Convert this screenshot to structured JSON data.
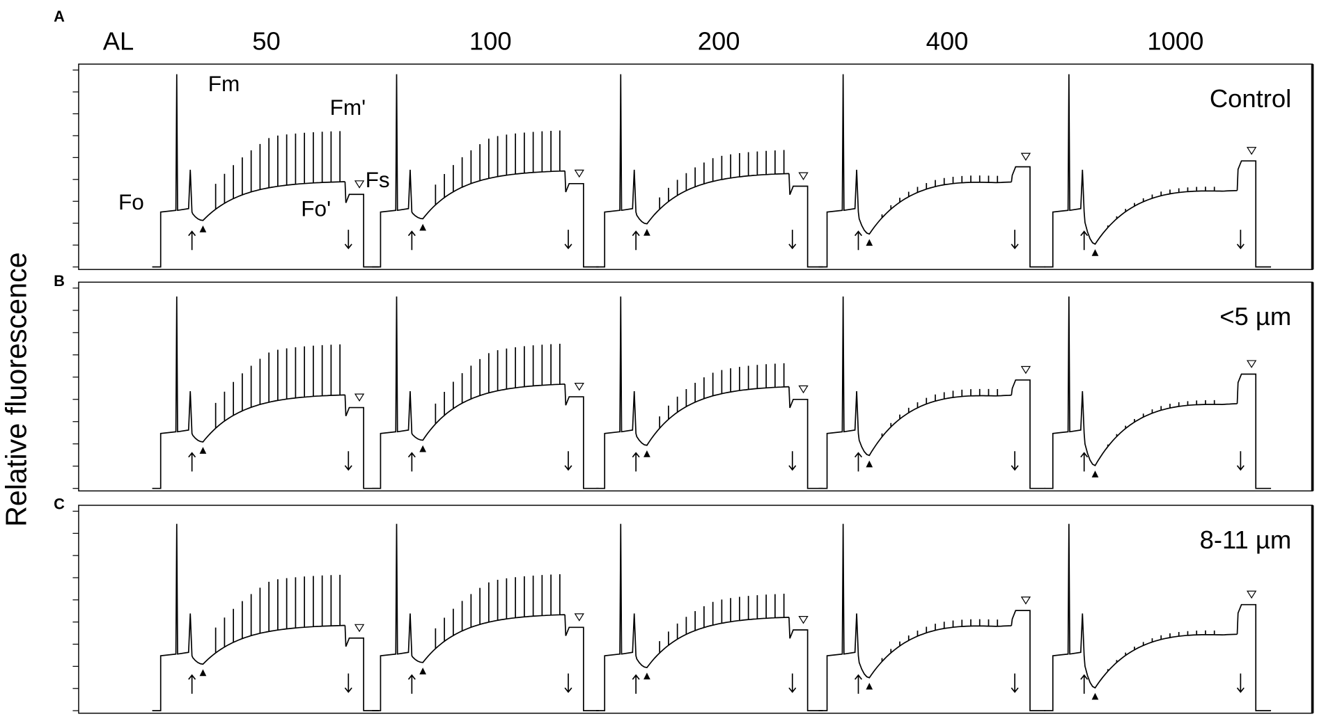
{
  "panels": [
    {
      "label": "A",
      "condition": "Control",
      "color": "#000000"
    },
    {
      "label": "B",
      "condition": "<5 µm",
      "color": "#e00000"
    },
    {
      "label": "C",
      "condition": "8-11 µm",
      "color": "#22dd22"
    }
  ],
  "light_levels": {
    "al_label": "AL",
    "levels": [
      "50",
      "100",
      "200",
      "400",
      "1000"
    ]
  },
  "y_axis_label": "Relative fluorescence",
  "annotations": {
    "fm": "Fm",
    "fo": "Fo",
    "fm_prime": "Fm'",
    "fs": "Fs",
    "fo_prime": "Fo'"
  }
}
